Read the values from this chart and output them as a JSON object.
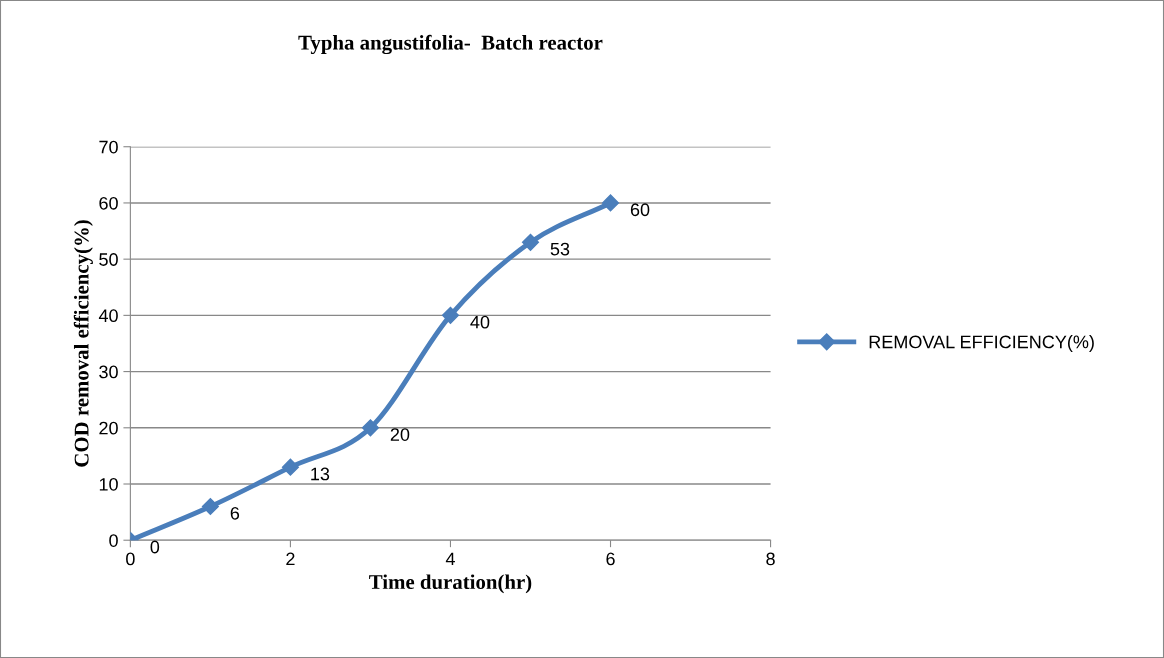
{
  "chart_data": {
    "type": "line",
    "title": "Typha angustifolia-  Batch reactor",
    "xlabel": "Time duration(hr)",
    "ylabel": "COD removal efficiency(%)",
    "x": [
      0,
      1,
      2,
      3,
      4,
      5,
      6
    ],
    "series": [
      {
        "name": "REMOVAL EFFICIENCY(%)",
        "color": "#4a7ebb",
        "values": [
          0,
          6,
          13,
          20,
          40,
          53,
          60
        ]
      }
    ],
    "xlim": [
      0,
      8
    ],
    "xticks": [
      0,
      2,
      4,
      6,
      8
    ],
    "ylim": [
      0,
      70
    ],
    "yticks": [
      0,
      10,
      20,
      30,
      40,
      50,
      60,
      70
    ],
    "grid": "y",
    "legend": "right",
    "marker": "diamond",
    "line_style": "solid",
    "data_labels": true
  }
}
